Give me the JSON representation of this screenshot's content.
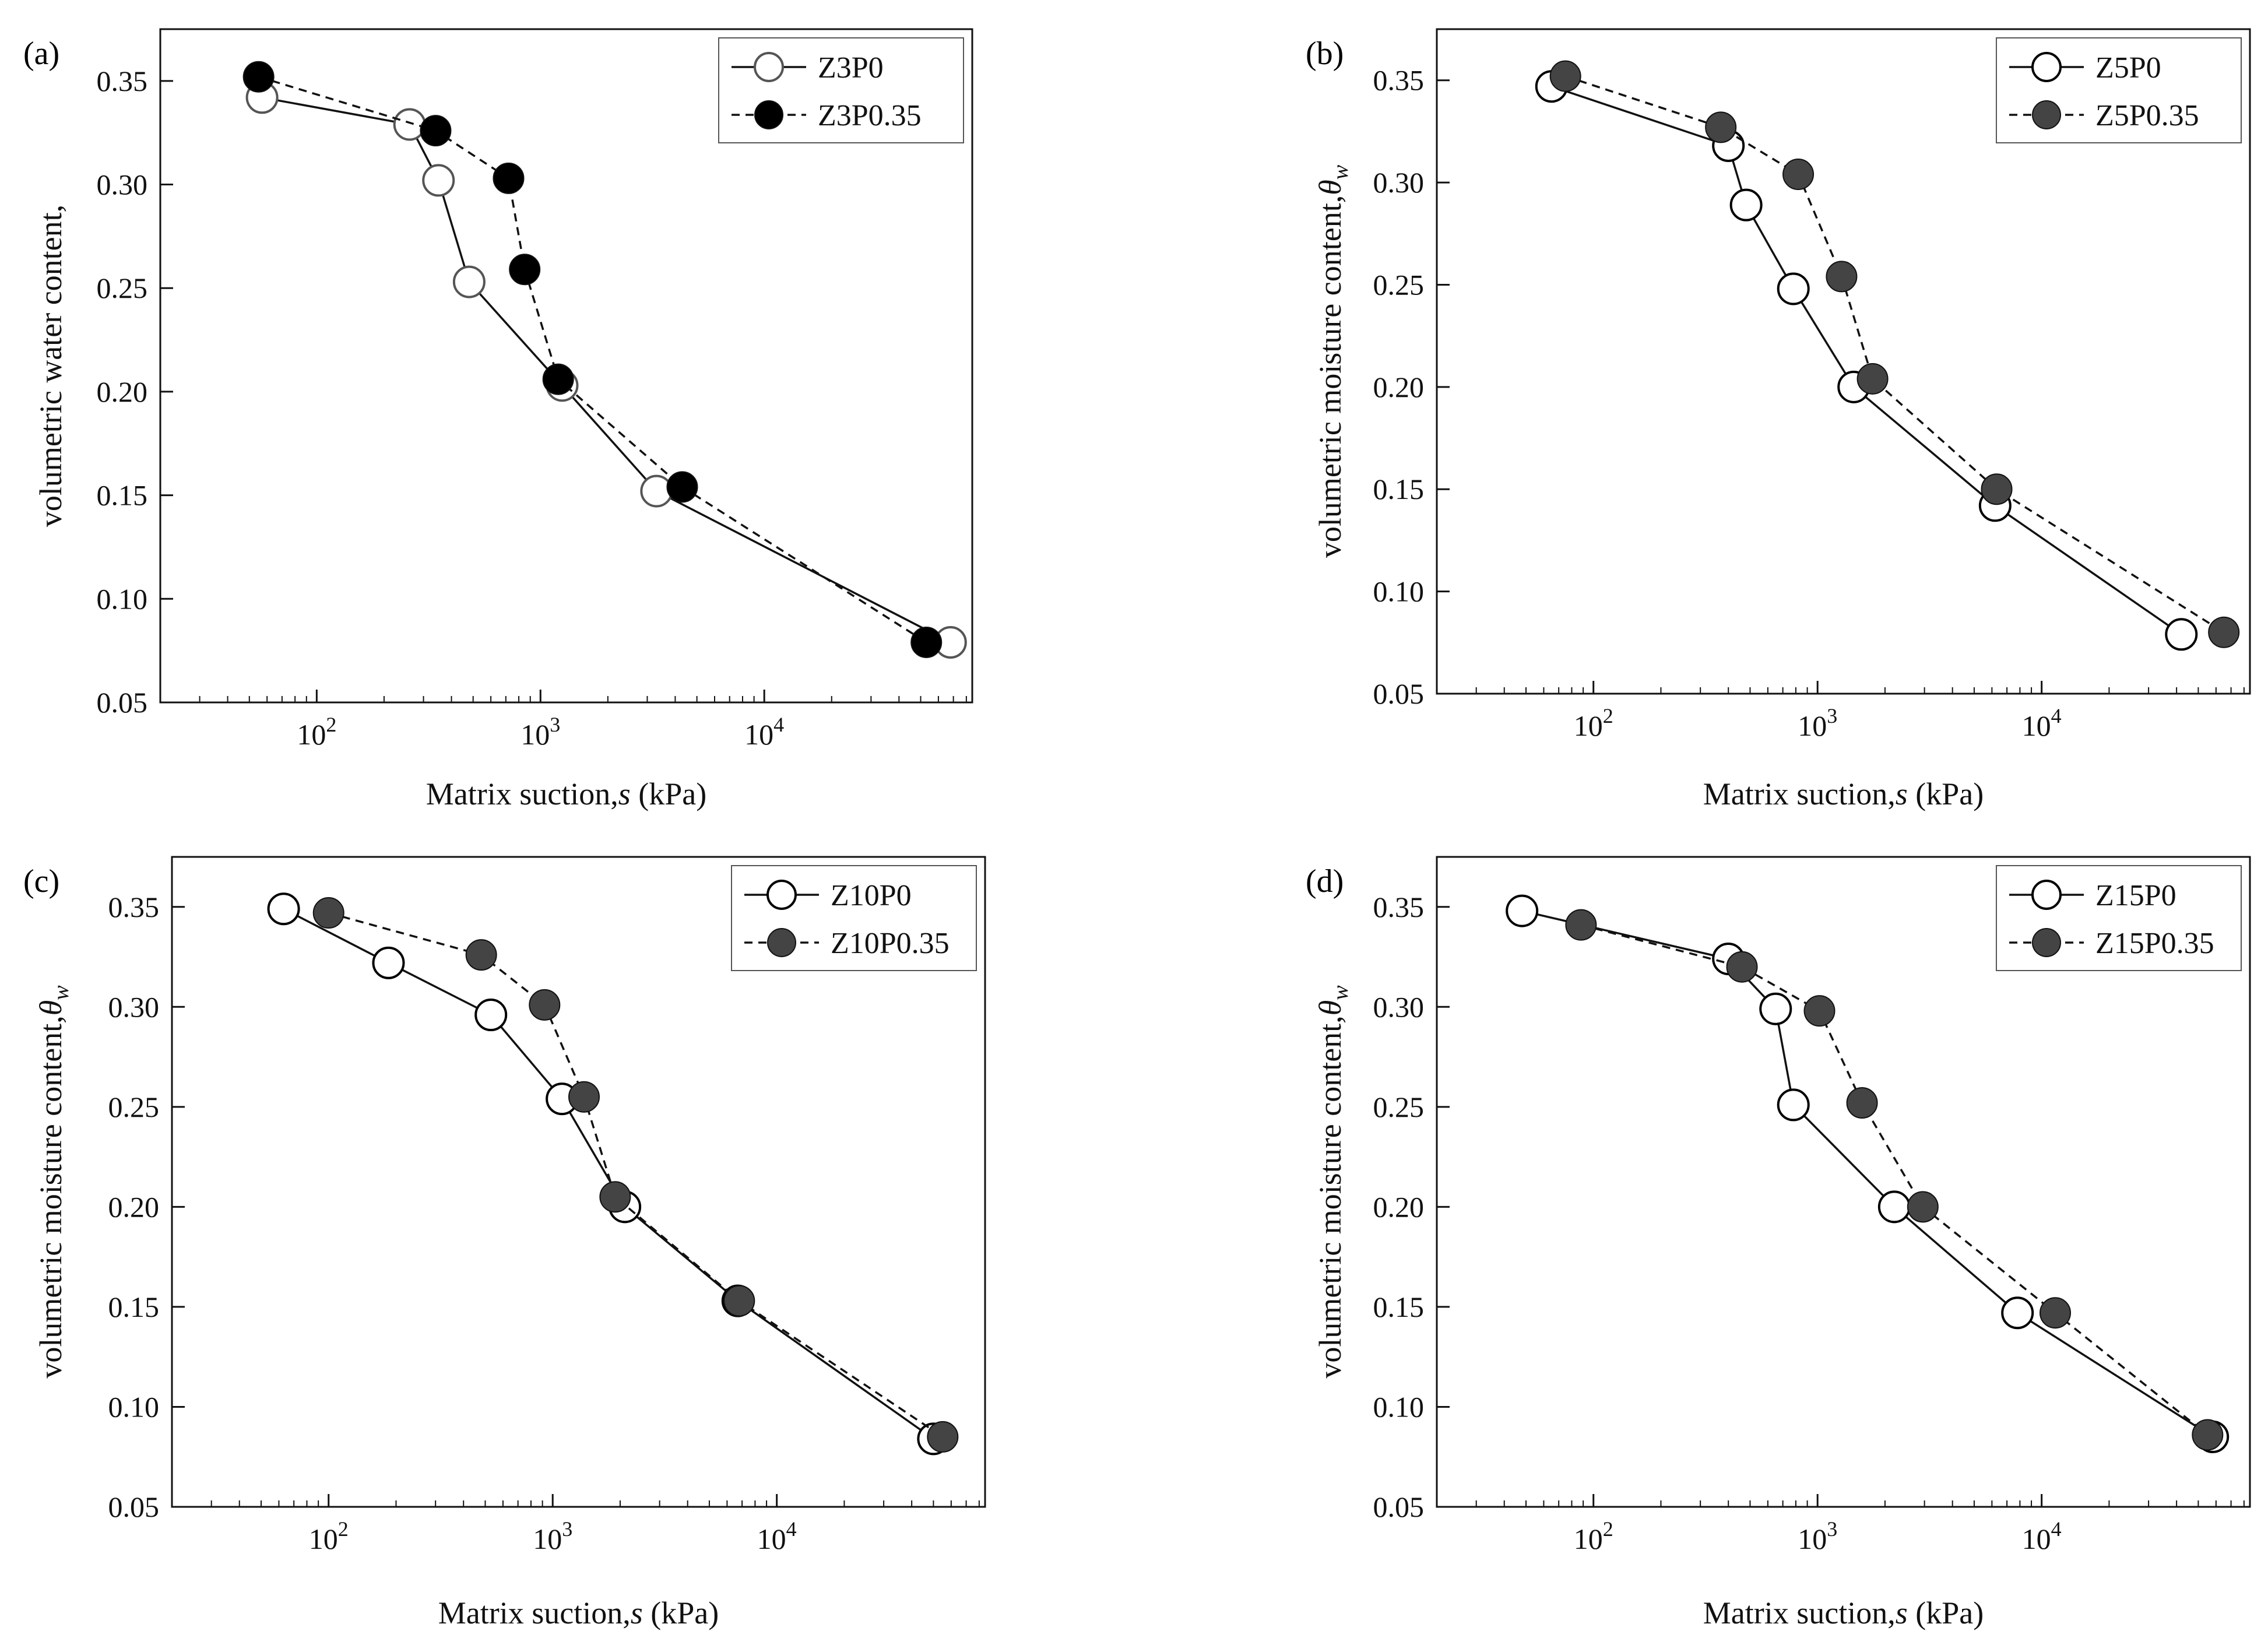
{
  "figure": {
    "panels": [
      {
        "label": "(a)",
        "xlabel": "Matrix suction,",
        "xlabel_symbol": "s",
        "xlabel_unit": "(kPa)",
        "ylabel": "volumetric water content,",
        "ylabel_symbol": ""
      },
      {
        "label": "(b)",
        "xlabel": "Matrix suction,",
        "xlabel_symbol": "s",
        "xlabel_unit": "(kPa)",
        "ylabel": "volumetric moisture content,",
        "ylabel_symbol": "θ",
        "ylabel_sub": "w"
      },
      {
        "label": "(c)",
        "xlabel": "Matrix suction,",
        "xlabel_symbol": "s",
        "xlabel_unit": "(kPa)",
        "ylabel": "volumetric moisture content,",
        "ylabel_symbol": "θ",
        "ylabel_sub": "w"
      },
      {
        "label": "(d)",
        "xlabel": "Matrix suction,",
        "xlabel_symbol": "s",
        "xlabel_unit": "(kPa)",
        "ylabel": "volumetric moisture content,",
        "ylabel_symbol": "θ",
        "ylabel_sub": "w"
      }
    ]
  },
  "chart_data": [
    {
      "type": "scatter",
      "panel": "(a)",
      "xscale": "log",
      "xlim": [
        20,
        85000
      ],
      "ylim": [
        0.05,
        0.375
      ],
      "xticks": [
        100,
        1000,
        10000
      ],
      "xtick_labels": [
        "10",
        "10",
        "10"
      ],
      "xtick_exponents": [
        "2",
        "3",
        "4"
      ],
      "yticks": [
        0.05,
        0.1,
        0.15,
        0.2,
        0.25,
        0.3,
        0.35
      ],
      "ytick_labels": [
        "0.05",
        "0.10",
        "0.15",
        "0.20",
        "0.25",
        "0.30",
        "0.35"
      ],
      "legend_position": "top-right",
      "series": [
        {
          "name": "Z3P0",
          "line": "solid",
          "marker": "open",
          "marker_stroke": "#555555",
          "x": [
            57,
            260,
            350,
            480,
            1250,
            3300,
            68000
          ],
          "y": [
            0.342,
            0.329,
            0.302,
            0.253,
            0.203,
            0.152,
            0.079
          ]
        },
        {
          "name": "Z3P0.35",
          "line": "dashed",
          "marker": "filled",
          "marker_fill": "#000000",
          "x": [
            55,
            340,
            720,
            850,
            1200,
            4300,
            53000
          ],
          "y": [
            0.352,
            0.326,
            0.303,
            0.259,
            0.206,
            0.154,
            0.079
          ]
        }
      ]
    },
    {
      "type": "scatter",
      "panel": "(b)",
      "xscale": "log",
      "xlim": [
        20,
        85000
      ],
      "ylim": [
        0.05,
        0.375
      ],
      "xticks": [
        100,
        1000,
        10000
      ],
      "xtick_labels": [
        "10",
        "10",
        "10"
      ],
      "xtick_exponents": [
        "2",
        "3",
        "4"
      ],
      "yticks": [
        0.05,
        0.1,
        0.15,
        0.2,
        0.25,
        0.3,
        0.35
      ],
      "ytick_labels": [
        "0.05",
        "0.10",
        "0.15",
        "0.20",
        "0.25",
        "0.30",
        "0.35"
      ],
      "legend_position": "top-right",
      "series": [
        {
          "name": "Z5P0",
          "line": "solid",
          "marker": "open",
          "marker_stroke": "#000000",
          "x": [
            65,
            400,
            480,
            780,
            1450,
            6200,
            42000
          ],
          "y": [
            0.347,
            0.318,
            0.289,
            0.248,
            0.2,
            0.142,
            0.079
          ]
        },
        {
          "name": "Z5P0.35",
          "line": "dashed",
          "marker": "filled",
          "marker_fill": "#444444",
          "x": [
            75,
            370,
            820,
            1280,
            1760,
            6300,
            65000
          ],
          "y": [
            0.352,
            0.327,
            0.304,
            0.254,
            0.204,
            0.15,
            0.08
          ]
        }
      ]
    },
    {
      "type": "scatter",
      "panel": "(c)",
      "xscale": "log",
      "xlim": [
        20,
        85000
      ],
      "ylim": [
        0.05,
        0.375
      ],
      "xticks": [
        100,
        1000,
        10000
      ],
      "xtick_labels": [
        "10",
        "10",
        "10"
      ],
      "xtick_exponents": [
        "2",
        "3",
        "4"
      ],
      "yticks": [
        0.05,
        0.1,
        0.15,
        0.2,
        0.25,
        0.3,
        0.35
      ],
      "ytick_labels": [
        "0.05",
        "0.10",
        "0.15",
        "0.20",
        "0.25",
        "0.30",
        "0.35"
      ],
      "legend_position": "top-right",
      "series": [
        {
          "name": "Z10P0",
          "line": "solid",
          "marker": "open",
          "marker_stroke": "#000000",
          "x": [
            63,
            185,
            530,
            1100,
            2100,
            6700,
            50000
          ],
          "y": [
            0.349,
            0.322,
            0.296,
            0.254,
            0.2,
            0.153,
            0.084
          ]
        },
        {
          "name": "Z10P0.35",
          "line": "dashed",
          "marker": "filled",
          "marker_fill": "#444444",
          "x": [
            100,
            480,
            920,
            1380,
            1900,
            6800,
            55000
          ],
          "y": [
            0.347,
            0.326,
            0.301,
            0.255,
            0.205,
            0.153,
            0.085
          ]
        }
      ]
    },
    {
      "type": "scatter",
      "panel": "(d)",
      "xscale": "log",
      "xlim": [
        20,
        85000
      ],
      "ylim": [
        0.05,
        0.375
      ],
      "xticks": [
        100,
        1000,
        10000
      ],
      "xtick_labels": [
        "10",
        "10",
        "10"
      ],
      "xtick_exponents": [
        "2",
        "3",
        "4"
      ],
      "yticks": [
        0.05,
        0.1,
        0.15,
        0.2,
        0.25,
        0.3,
        0.35
      ],
      "ytick_labels": [
        "0.05",
        "0.10",
        "0.15",
        "0.20",
        "0.25",
        "0.30",
        "0.35"
      ],
      "legend_position": "top-right",
      "series": [
        {
          "name": "Z15P0",
          "line": "solid",
          "marker": "open",
          "marker_stroke": "#000000",
          "x": [
            48,
            400,
            650,
            780,
            2200,
            7800,
            58000
          ],
          "y": [
            0.348,
            0.324,
            0.299,
            0.251,
            0.2,
            0.147,
            0.085
          ]
        },
        {
          "name": "Z15P0.35",
          "line": "dashed",
          "marker": "filled",
          "marker_fill": "#444444",
          "x": [
            88,
            460,
            1020,
            1580,
            2950,
            11500,
            55000
          ],
          "y": [
            0.341,
            0.32,
            0.298,
            0.252,
            0.2,
            0.147,
            0.086
          ]
        }
      ]
    }
  ]
}
